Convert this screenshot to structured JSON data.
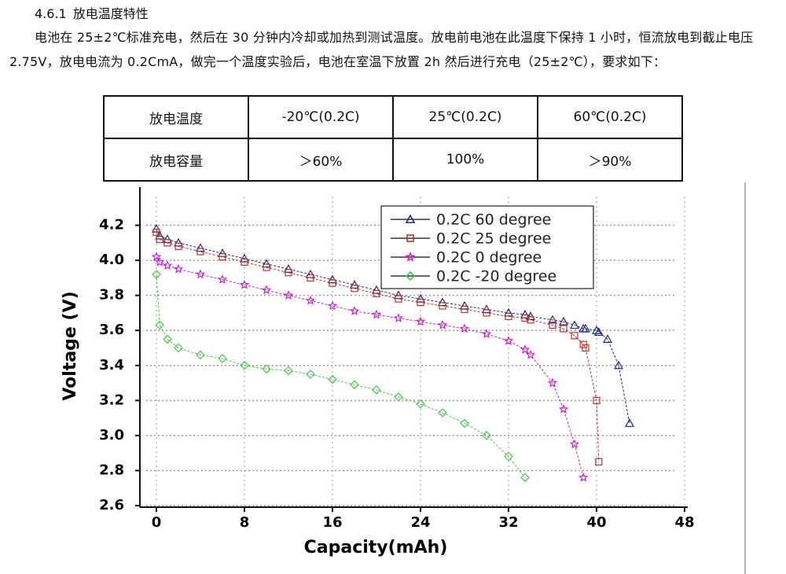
{
  "section": {
    "number": "4.6.1",
    "title": "放电温度特性"
  },
  "paragraph": "电池在 25±2℃标准充电，然后在 30 分钟内冷却或加热到测试温度。放电前电池在此温度下保持 1 小时，恒流放电到截止电压 2.75V，放电电流为 0.2CmA，做完一个温度实验后，电池在室温下放置 2h 然后进行充电（25±2℃），要求如下：",
  "table": {
    "rows": [
      [
        "放电温度",
        "-20℃(0.2C)",
        "25℃(0.2C)",
        "60℃(0.2C)"
      ],
      [
        "放电容量",
        "＞60%",
        "100%",
        "＞90%"
      ]
    ]
  },
  "chart_data": {
    "type": "line",
    "x_label": "Capacity(mAh)",
    "y_label": "Voltage (V)",
    "x": [
      0,
      0.3,
      1,
      2,
      4,
      6,
      8,
      10,
      12,
      14,
      16,
      18,
      20,
      22,
      24,
      26,
      28,
      30,
      32,
      33.5,
      34,
      36,
      37,
      38,
      38.8,
      39,
      40,
      40.2,
      41,
      42,
      43
    ],
    "series": [
      {
        "name": "0.2C 60 degree",
        "color": "#1f2a88",
        "marker": "triangle",
        "values": [
          4.18,
          4.14,
          4.12,
          4.1,
          4.07,
          4.04,
          4.01,
          3.98,
          3.95,
          3.92,
          3.89,
          3.86,
          3.83,
          3.8,
          3.78,
          3.76,
          3.74,
          3.72,
          3.7,
          3.69,
          3.68,
          3.66,
          3.65,
          3.63,
          3.61,
          3.61,
          3.6,
          3.59,
          3.55,
          3.4,
          3.07
        ]
      },
      {
        "name": "0.2C 25 degree",
        "color": "#b3362a",
        "marker": "square",
        "values": [
          4.16,
          4.12,
          4.1,
          4.08,
          4.05,
          4.02,
          3.99,
          3.96,
          3.93,
          3.9,
          3.87,
          3.84,
          3.81,
          3.78,
          3.76,
          3.74,
          3.72,
          3.7,
          3.68,
          3.67,
          3.66,
          3.63,
          3.61,
          3.57,
          3.52,
          3.5,
          3.2,
          2.85,
          null,
          null,
          null
        ]
      },
      {
        "name": "0.2C 0 degree",
        "color": "#cc22cc",
        "marker": "star",
        "values": [
          4.02,
          3.99,
          3.97,
          3.95,
          3.92,
          3.89,
          3.86,
          3.83,
          3.8,
          3.77,
          3.74,
          3.71,
          3.69,
          3.67,
          3.65,
          3.63,
          3.61,
          3.58,
          3.54,
          3.49,
          3.46,
          3.3,
          3.15,
          2.95,
          2.76,
          null,
          null,
          null,
          null,
          null,
          null
        ]
      },
      {
        "name": "0.2C -20 degree",
        "color": "#44cc44",
        "marker": "diamond",
        "values": [
          3.92,
          3.63,
          3.55,
          3.5,
          3.46,
          3.44,
          3.4,
          3.38,
          3.37,
          3.35,
          3.32,
          3.29,
          3.26,
          3.22,
          3.18,
          3.13,
          3.07,
          3.0,
          2.88,
          2.76,
          null,
          null,
          null,
          null,
          null,
          null,
          null,
          null,
          null,
          null,
          null
        ]
      }
    ],
    "xlim": [
      -1.5,
      48
    ],
    "ylim": [
      2.6,
      4.4
    ],
    "xticks": [
      0,
      8,
      16,
      24,
      32,
      40,
      48
    ],
    "yticks": [
      2.6,
      2.8,
      {
        "value": 3,
        "label": "3.0"
      },
      3.2,
      3.4,
      3.6,
      3.8,
      {
        "value": 4,
        "label": "4.0"
      },
      4.2
    ],
    "grid": true,
    "legend": "upper right"
  }
}
